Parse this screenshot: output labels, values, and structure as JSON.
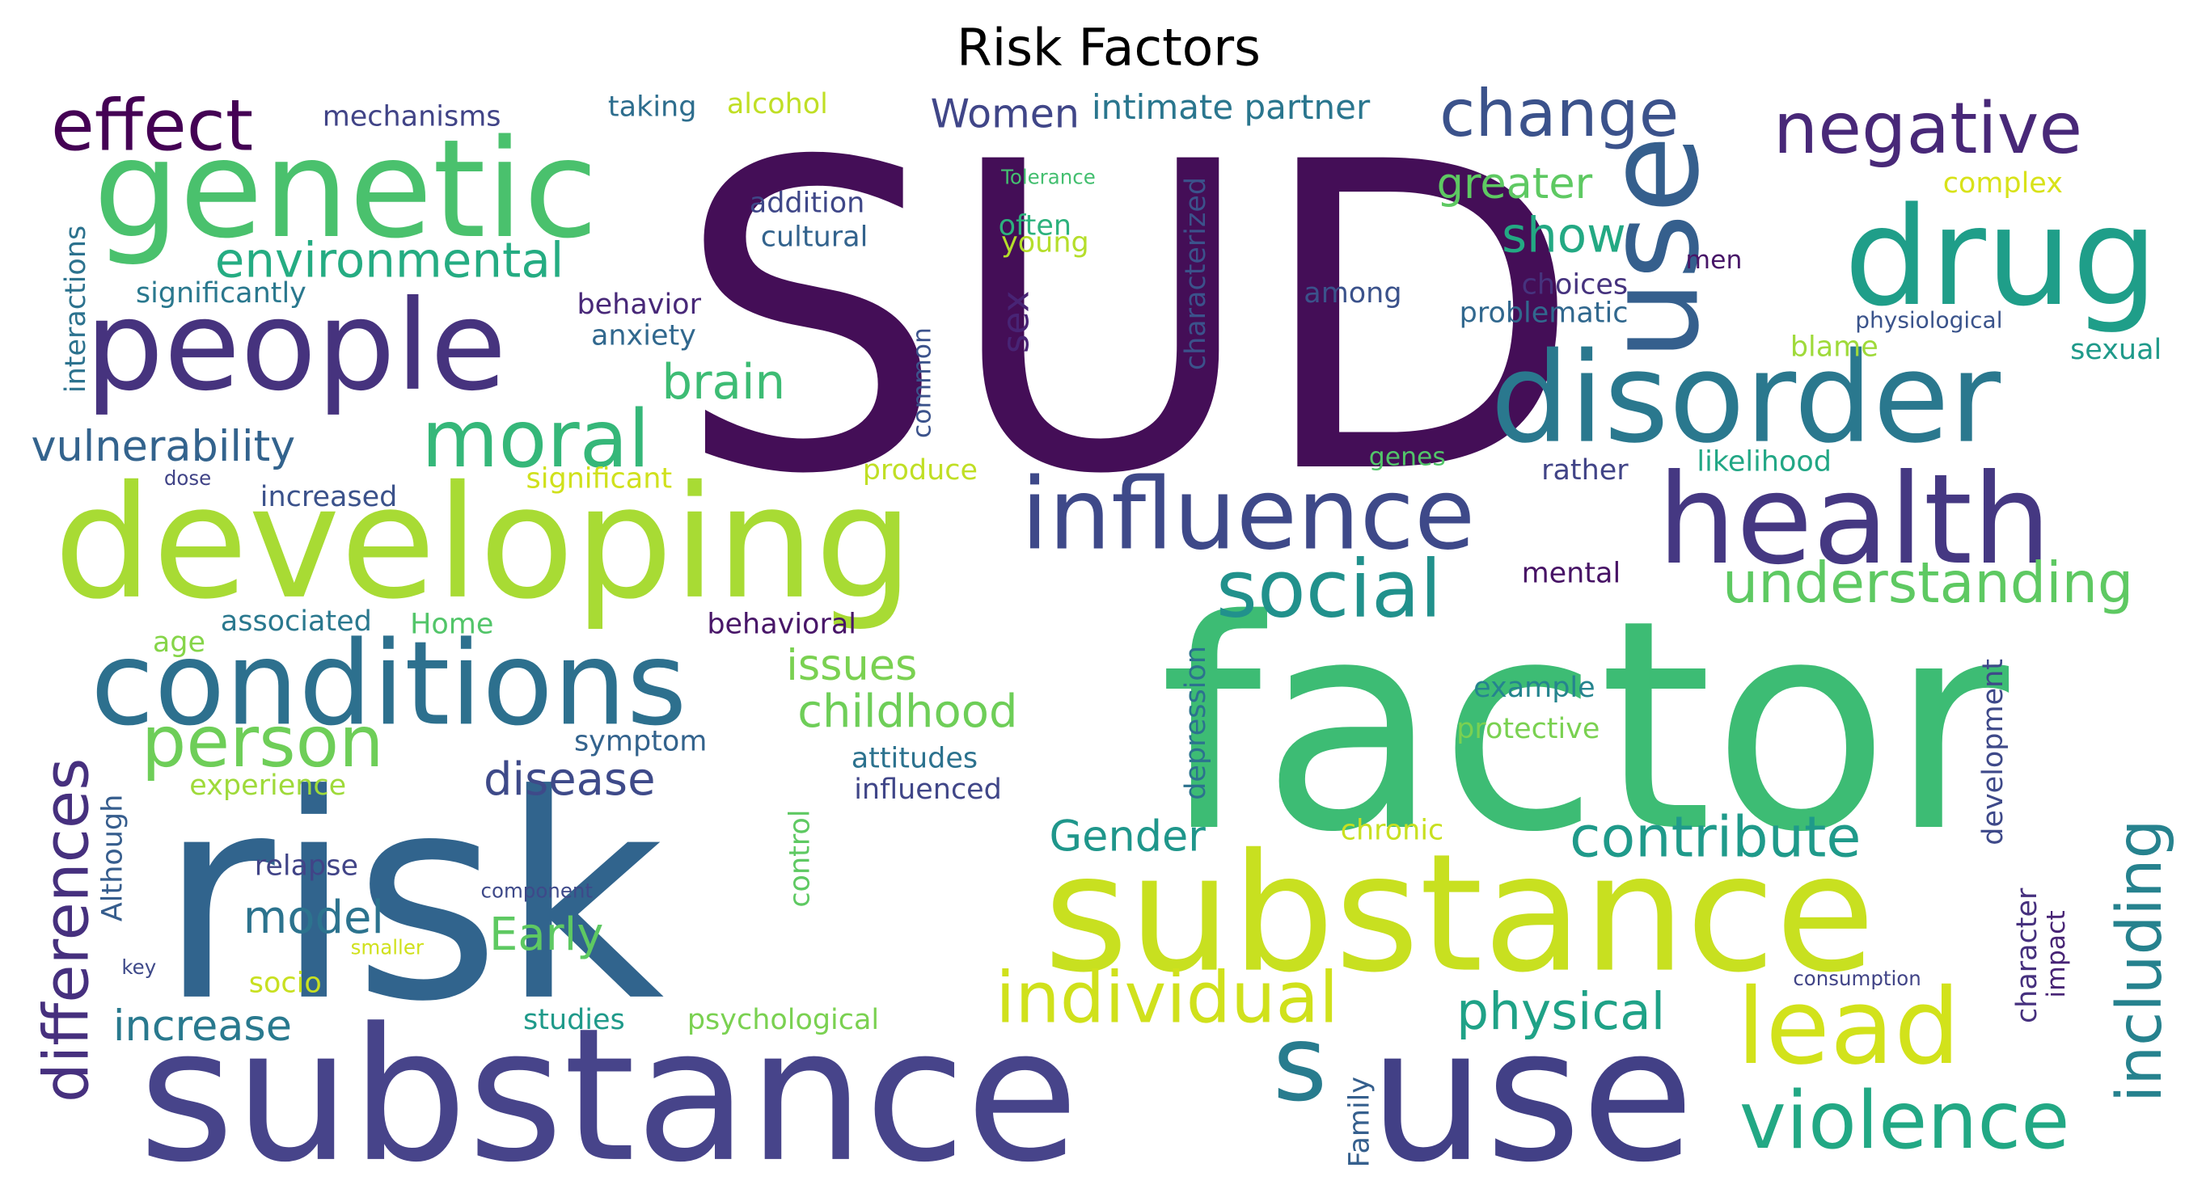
{
  "title": "Risk Factors",
  "words": [
    {
      "text": "SUD",
      "size": 300,
      "color": "#440e57"
    },
    {
      "text": "factor",
      "size": 205,
      "color": "#3dbc74"
    },
    {
      "text": "risk",
      "size": 200,
      "color": "#31648d"
    },
    {
      "text": "substance",
      "size": 130,
      "color": "#47448a"
    },
    {
      "text": "use",
      "size": 130,
      "color": "#424086"
    },
    {
      "text": "substance",
      "size": 115,
      "color": "#c8e020"
    },
    {
      "text": "developing",
      "size": 110,
      "color": "#a8db34"
    },
    {
      "text": "genetic",
      "size": 96,
      "color": "#4ac16d"
    },
    {
      "text": "drug",
      "size": 96,
      "color": "#1f9e89"
    },
    {
      "text": "use",
      "size": 90,
      "color": "#355f8d"
    },
    {
      "text": "people",
      "size": 88,
      "color": "#46337e"
    },
    {
      "text": "disorder",
      "size": 88,
      "color": "#2a788e"
    },
    {
      "text": "health",
      "size": 88,
      "color": "#453882"
    },
    {
      "text": "conditions",
      "size": 82,
      "color": "#2d708e"
    },
    {
      "text": "influence",
      "size": 70,
      "color": "#3e4989"
    },
    {
      "text": "lead",
      "size": 74,
      "color": "#d2e21b"
    },
    {
      "text": "s",
      "size": 74,
      "color": "#287c8e"
    },
    {
      "text": "violence",
      "size": 56,
      "color": "#22a884"
    },
    {
      "text": "negative",
      "size": 50,
      "color": "#482878"
    },
    {
      "text": "moral",
      "size": 56,
      "color": "#35b779"
    },
    {
      "text": "social",
      "size": 56,
      "color": "#21918c"
    },
    {
      "text": "effect",
      "size": 50,
      "color": "#440154"
    },
    {
      "text": "individual",
      "size": 50,
      "color": "#d0e11c"
    },
    {
      "text": "change",
      "size": 46,
      "color": "#3b528b"
    },
    {
      "text": "person",
      "size": 50,
      "color": "#6ece58"
    },
    {
      "text": "including",
      "size": 44,
      "color": "#26828e"
    },
    {
      "text": "differences",
      "size": 44,
      "color": "#46307e"
    },
    {
      "text": "understanding",
      "size": 40,
      "color": "#5ec962"
    },
    {
      "text": "contribute",
      "size": 40,
      "color": "#1f9a8a"
    },
    {
      "text": "environmental",
      "size": 34,
      "color": "#25ac82"
    },
    {
      "text": "brain",
      "size": 34,
      "color": "#3dbc74"
    },
    {
      "text": "physical",
      "size": 36,
      "color": "#1fa287"
    },
    {
      "text": "show",
      "size": 34,
      "color": "#23a983"
    },
    {
      "text": "greater",
      "size": 30,
      "color": "#5ec962"
    },
    {
      "text": "disease",
      "size": 32,
      "color": "#3e4a89"
    },
    {
      "text": "childhood",
      "size": 32,
      "color": "#6ece58"
    },
    {
      "text": "vulnerability",
      "size": 30,
      "color": "#33638d"
    },
    {
      "text": "Women",
      "size": 28,
      "color": "#404688"
    },
    {
      "text": "model",
      "size": 32,
      "color": "#2c738e"
    },
    {
      "text": "Early",
      "size": 32,
      "color": "#5ec962"
    },
    {
      "text": "Gender",
      "size": 30,
      "color": "#1f968b"
    },
    {
      "text": "increase",
      "size": 30,
      "color": "#29798e"
    },
    {
      "text": "issues",
      "size": 30,
      "color": "#7ad151"
    },
    {
      "text": "intimate partner",
      "size": 24,
      "color": "#2a768e"
    },
    {
      "text": "sex",
      "size": 26,
      "color": "#482475"
    },
    {
      "text": "mechanisms",
      "size": 20,
      "color": "#414487"
    },
    {
      "text": "taking",
      "size": 20,
      "color": "#2e6e8e"
    },
    {
      "text": "alcohol",
      "size": 20,
      "color": "#c0df25"
    },
    {
      "text": "addition",
      "size": 20,
      "color": "#3f4788"
    },
    {
      "text": "cultural",
      "size": 20,
      "color": "#33638d"
    },
    {
      "text": "often",
      "size": 20,
      "color": "#2db27d"
    },
    {
      "text": "young",
      "size": 20,
      "color": "#b5de2b"
    },
    {
      "text": "Tolerance",
      "size": 14,
      "color": "#44bf70"
    },
    {
      "text": "characterized",
      "size": 20,
      "color": "#3b528b"
    },
    {
      "text": "choices",
      "size": 20,
      "color": "#46337e"
    },
    {
      "text": "problematic",
      "size": 20,
      "color": "#31688e"
    },
    {
      "text": "men",
      "size": 18,
      "color": "#481668"
    },
    {
      "text": "complex",
      "size": 20,
      "color": "#d8e219"
    },
    {
      "text": "physiological",
      "size": 16,
      "color": "#3a538b"
    },
    {
      "text": "among",
      "size": 20,
      "color": "#3b528b"
    },
    {
      "text": "significantly",
      "size": 20,
      "color": "#2a788e"
    },
    {
      "text": "interactions",
      "size": 20,
      "color": "#2c728e"
    },
    {
      "text": "behavior",
      "size": 20,
      "color": "#482878"
    },
    {
      "text": "anxiety",
      "size": 20,
      "color": "#31688e"
    },
    {
      "text": "common",
      "size": 18,
      "color": "#3b528b"
    },
    {
      "text": "blame",
      "size": 20,
      "color": "#9fda3a"
    },
    {
      "text": "sexual",
      "size": 20,
      "color": "#1f9a8a"
    },
    {
      "text": "genes",
      "size": 18,
      "color": "#52c569"
    },
    {
      "text": "rather",
      "size": 20,
      "color": "#414487"
    },
    {
      "text": "likelihood",
      "size": 20,
      "color": "#22a785"
    },
    {
      "text": "significant",
      "size": 20,
      "color": "#d0e11c"
    },
    {
      "text": "produce",
      "size": 20,
      "color": "#c0df25"
    },
    {
      "text": "dose",
      "size": 14,
      "color": "#414487"
    },
    {
      "text": "increased",
      "size": 20,
      "color": "#3b528b"
    },
    {
      "text": "mental",
      "size": 20,
      "color": "#471365"
    },
    {
      "text": "associated",
      "size": 20,
      "color": "#2a788e"
    },
    {
      "text": "Home",
      "size": 20,
      "color": "#52c569"
    },
    {
      "text": "behavioral",
      "size": 20,
      "color": "#481668"
    },
    {
      "text": "age",
      "size": 20,
      "color": "#86d549"
    },
    {
      "text": "depression",
      "size": 20,
      "color": "#2c728e"
    },
    {
      "text": "example",
      "size": 20,
      "color": "#25848e"
    },
    {
      "text": "protective",
      "size": 20,
      "color": "#7ad151"
    },
    {
      "text": "development",
      "size": 20,
      "color": "#3e4989"
    },
    {
      "text": "symptom",
      "size": 20,
      "color": "#33638d"
    },
    {
      "text": "attitudes",
      "size": 20,
      "color": "#2c728e"
    },
    {
      "text": "influenced",
      "size": 20,
      "color": "#404688"
    },
    {
      "text": "experience",
      "size": 20,
      "color": "#9fda3a"
    },
    {
      "text": "Although",
      "size": 20,
      "color": "#365d8d"
    },
    {
      "text": "control",
      "size": 20,
      "color": "#5ec962"
    },
    {
      "text": "chronic",
      "size": 20,
      "color": "#c8e020"
    },
    {
      "text": "relapse",
      "size": 20,
      "color": "#414487"
    },
    {
      "text": "component",
      "size": 14,
      "color": "#3e4989"
    },
    {
      "text": "smaller",
      "size": 14,
      "color": "#d0e11c"
    },
    {
      "text": "key",
      "size": 14,
      "color": "#3e4989"
    },
    {
      "text": "socio",
      "size": 20,
      "color": "#c8e020"
    },
    {
      "text": "character",
      "size": 20,
      "color": "#46307e"
    },
    {
      "text": "impact",
      "size": 18,
      "color": "#482475"
    },
    {
      "text": "consumption",
      "size": 14,
      "color": "#414487"
    },
    {
      "text": "studies",
      "size": 20,
      "color": "#1f9a8a"
    },
    {
      "text": "psychological",
      "size": 20,
      "color": "#7ad151"
    },
    {
      "text": "Family",
      "size": 20,
      "color": "#355f8d"
    }
  ]
}
